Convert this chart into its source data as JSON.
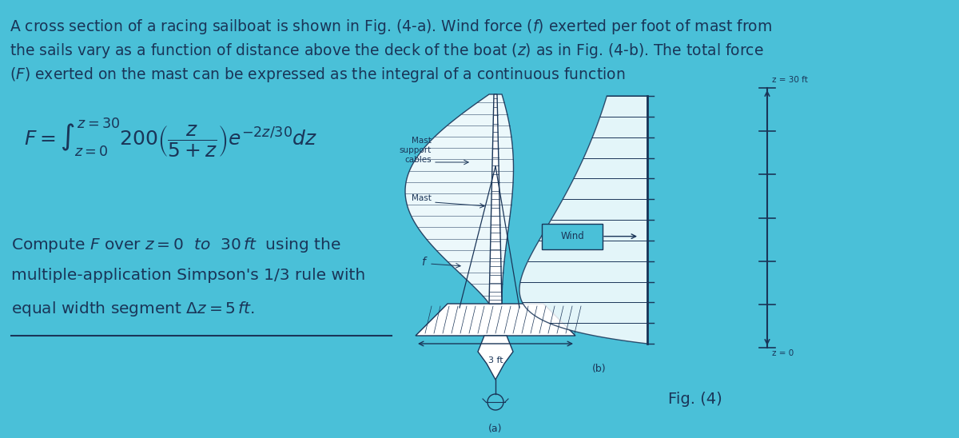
{
  "bg_color": "#4ac0d8",
  "text_color": "#1a3558",
  "title_line1": "A cross section of a racing sailboat is shown in Fig. (4-a). Wind force (",
  "title_italic1": "f",
  "title_line1b": ") exerted per foot of mast from",
  "title_line2": "the sails vary as a function of distance above the deck of the boat (",
  "title_italic2": "z",
  "title_line2b": ") as in Fig. (4-b). The total force",
  "title_line3": "(",
  "title_italic3": "F",
  "title_line3b": ") exerted on the mast can be expressed as the integral of a continuous function",
  "fig_label": "Fig. (4)",
  "wind_label": "Wind",
  "fig_b_label": "(b)",
  "fig_a_label": "(a)",
  "z30_label": "z = 30 ft",
  "z0_label": "z = 0",
  "ft3_label": "3 ft",
  "mast_support_label": "Mast\nsupport\ncables",
  "mast_label": "Mast",
  "f_label": "f",
  "fig_width": 12.0,
  "fig_height": 5.48,
  "dpi": 100
}
